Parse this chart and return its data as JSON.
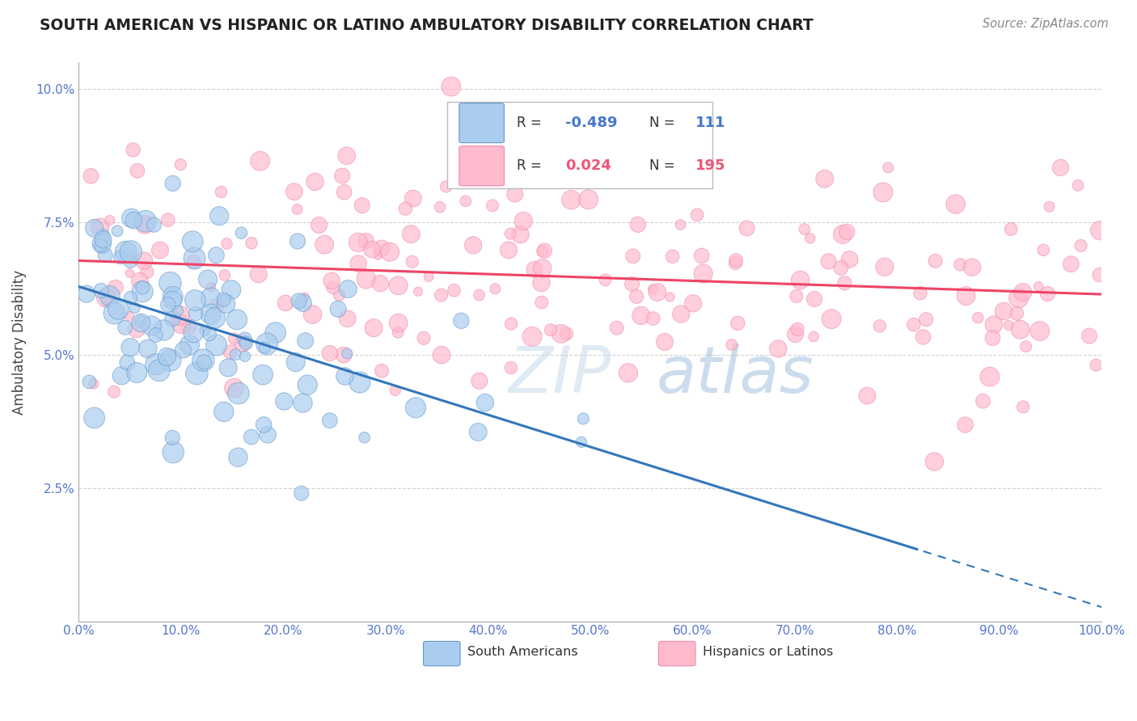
{
  "title": "SOUTH AMERICAN VS HISPANIC OR LATINO AMBULATORY DISABILITY CORRELATION CHART",
  "source": "Source: ZipAtlas.com",
  "ylabel": "Ambulatory Disability",
  "background_color": "#ffffff",
  "grid_color": "#cccccc",
  "title_color": "#222222",
  "source_color": "#888888",
  "axis_label_color": "#5577cc",
  "xlim": [
    0.0,
    1.0
  ],
  "ylim": [
    0.0,
    0.105
  ],
  "xtick_labels": [
    "0.0%",
    "10.0%",
    "20.0%",
    "30.0%",
    "40.0%",
    "50.0%",
    "60.0%",
    "70.0%",
    "80.0%",
    "90.0%",
    "100.0%"
  ],
  "xtick_values": [
    0.0,
    0.1,
    0.2,
    0.3,
    0.4,
    0.5,
    0.6,
    0.7,
    0.8,
    0.9,
    1.0
  ],
  "ytick_labels": [
    "2.5%",
    "5.0%",
    "7.5%",
    "10.0%"
  ],
  "ytick_values": [
    0.025,
    0.05,
    0.075,
    0.1
  ],
  "south_american_color": "#aaccee",
  "south_american_edge": "#6699cc",
  "hispanic_color": "#ffbbcc",
  "hispanic_edge": "#ee88aa",
  "regression_blue": "#3377bb",
  "regression_pink": "#ee4466",
  "legend_R_blue": "-0.489",
  "legend_N_blue": "111",
  "legend_R_pink": "0.024",
  "legend_N_pink": "195",
  "legend_color_blue": "#4477cc",
  "legend_color_pink": "#ee5577",
  "sa_N": 111,
  "hi_N": 195,
  "sa_seed": 42,
  "hi_seed": 77,
  "size_seed": 55
}
